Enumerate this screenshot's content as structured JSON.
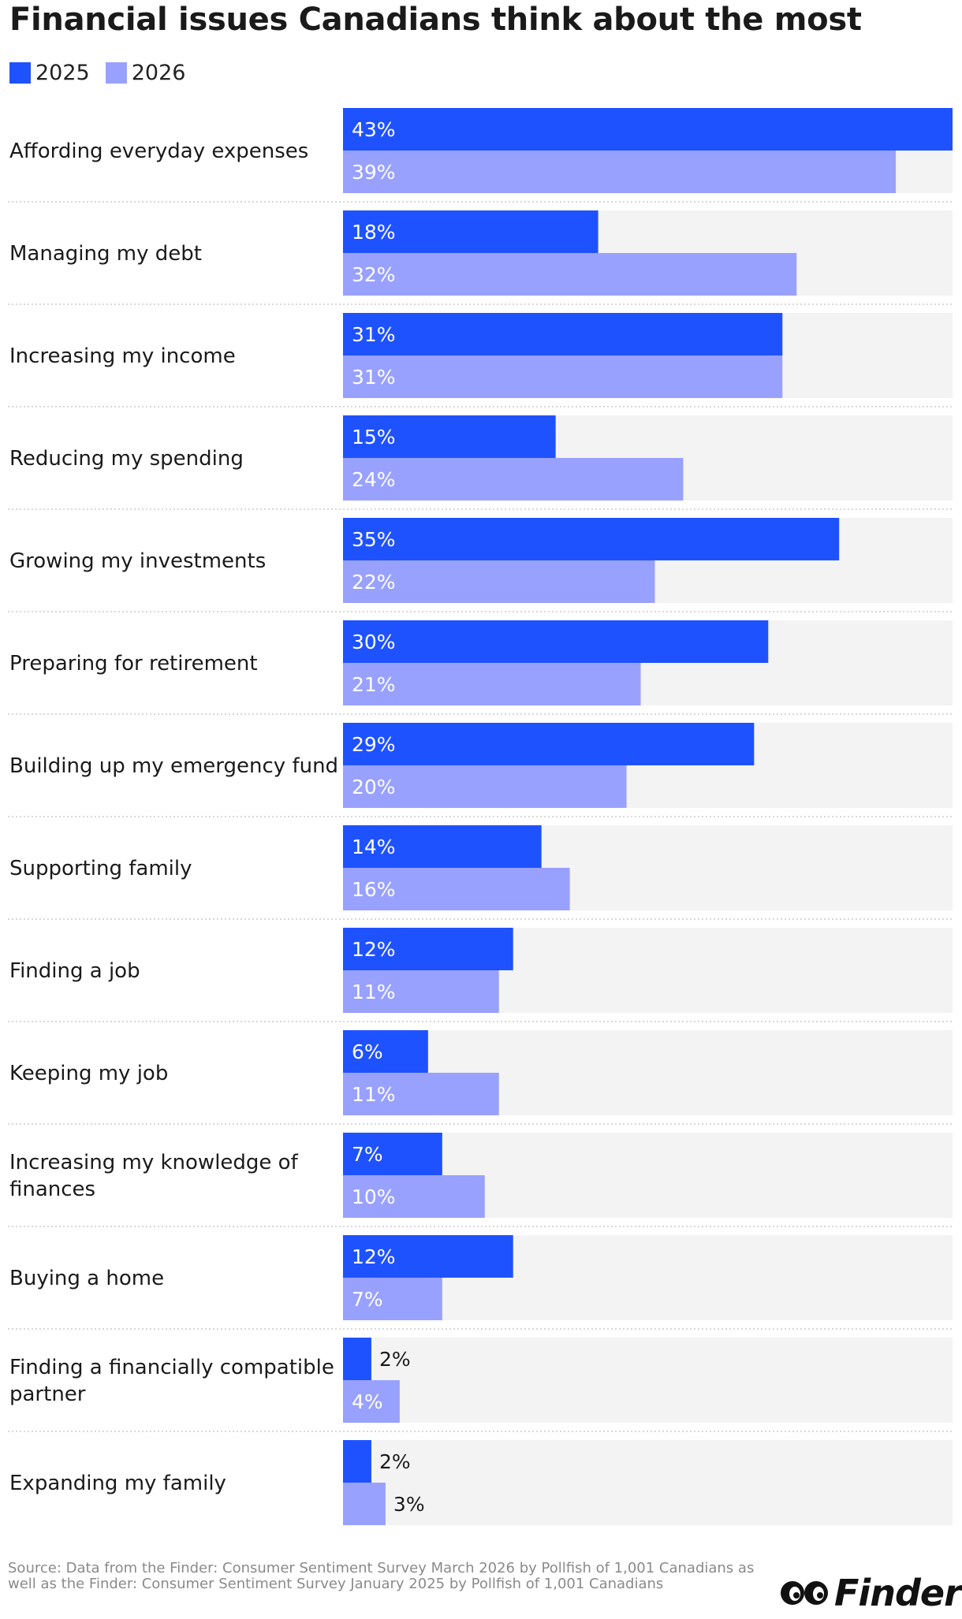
{
  "chart_data": {
    "type": "bar",
    "orientation": "horizontal",
    "title": "Financial issues Canadians think about the most",
    "xlabel": "",
    "ylabel": "",
    "xlim": [
      0,
      43
    ],
    "grid": false,
    "legend_position": "top-left",
    "categories": [
      [
        "Affording everyday expenses"
      ],
      [
        "Managing my debt"
      ],
      [
        "Increasing my income"
      ],
      [
        "Reducing my spending"
      ],
      [
        "Growing my investments"
      ],
      [
        "Preparing for retirement"
      ],
      [
        "Building up my emergency fund"
      ],
      [
        "Supporting family"
      ],
      [
        "Finding a job"
      ],
      [
        "Keeping my job"
      ],
      [
        "Increasing my knowledge of",
        "finances"
      ],
      [
        "Buying a home"
      ],
      [
        "Finding a financially compatible",
        "partner"
      ],
      [
        "Expanding my family"
      ]
    ],
    "series": [
      {
        "name": "2025",
        "color": "#1F52FF",
        "values": [
          43,
          18,
          31,
          15,
          35,
          30,
          29,
          14,
          12,
          6,
          7,
          12,
          2,
          2
        ],
        "labels": [
          "43%",
          "18%",
          "31%",
          "15%",
          "35%",
          "30%",
          "29%",
          "14%",
          "12%",
          "6%",
          "7%",
          "12%",
          "2%",
          "2%"
        ]
      },
      {
        "name": "2026",
        "color": "#99A1FF",
        "values": [
          39,
          32,
          31,
          24,
          22,
          21,
          20,
          16,
          11,
          11,
          10,
          7,
          4,
          3
        ],
        "labels": [
          "39%",
          "32%",
          "31%",
          "24%",
          "22%",
          "21%",
          "20%",
          "16%",
          "11%",
          "11%",
          "10%",
          "7%",
          "4%",
          "3%"
        ]
      }
    ],
    "track_color": "#F3F3F3",
    "separator_color": "#CCCCCC"
  },
  "source": "Source: Data from the Finder: Consumer Sentiment Survey March 2026 by Pollfish of 1,001 Canadians as well as the Finder: Consumer Sentiment Survey January 2025 by Pollfish of 1,001 Canadians",
  "brand": {
    "name": "Finder"
  }
}
